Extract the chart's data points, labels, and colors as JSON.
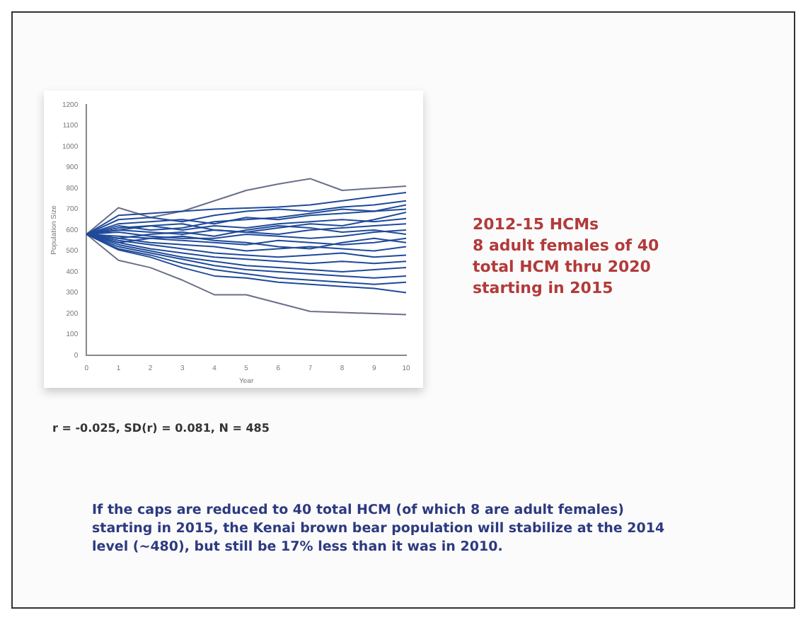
{
  "chart_data": {
    "type": "line",
    "xlabel": "Year",
    "ylabel": "Population Size",
    "x": [
      0,
      1,
      2,
      3,
      4,
      5,
      6,
      7,
      8,
      9,
      10
    ],
    "xlim": [
      0,
      10
    ],
    "xticks": [
      0,
      1,
      2,
      3,
      4,
      5,
      6,
      7,
      8,
      9,
      10
    ],
    "ylim": [
      0,
      1200
    ],
    "yticks": [
      0,
      100,
      200,
      300,
      400,
      500,
      600,
      700,
      800,
      900,
      1000,
      1100,
      1200
    ],
    "grid": false,
    "legend": false,
    "marker": "none",
    "line_style": "solid",
    "series": [
      {
        "color": "#1f4a9a",
        "values": [
          580,
          670,
          680,
          690,
          700,
          705,
          710,
          720,
          740,
          760,
          780
        ]
      },
      {
        "color": "#1f4a9a",
        "values": [
          580,
          650,
          660,
          640,
          670,
          690,
          700,
          690,
          710,
          720,
          740
        ]
      },
      {
        "color": "#1f4a9a",
        "values": [
          580,
          630,
          640,
          650,
          630,
          660,
          650,
          670,
          680,
          690,
          700
        ]
      },
      {
        "color": "#1f4a9a",
        "values": [
          580,
          610,
          620,
          600,
          620,
          610,
          630,
          640,
          650,
          640,
          655
        ]
      },
      {
        "color": "#1f4a9a",
        "values": [
          580,
          600,
          590,
          580,
          600,
          590,
          580,
          600,
          610,
          620,
          630
        ]
      },
      {
        "color": "#1f4a9a",
        "values": [
          580,
          590,
          570,
          560,
          560,
          580,
          570,
          560,
          570,
          590,
          600
        ]
      },
      {
        "color": "#1f4a9a",
        "values": [
          580,
          570,
          560,
          550,
          540,
          530,
          550,
          540,
          530,
          540,
          560
        ]
      },
      {
        "color": "#1f4a9a",
        "values": [
          580,
          560,
          540,
          530,
          520,
          500,
          510,
          520,
          510,
          500,
          520
        ]
      },
      {
        "color": "#1f4a9a",
        "values": [
          580,
          550,
          530,
          510,
          490,
          480,
          470,
          480,
          490,
          470,
          480
        ]
      },
      {
        "color": "#1f4a9a",
        "values": [
          580,
          540,
          510,
          490,
          470,
          460,
          450,
          440,
          450,
          440,
          450
        ]
      },
      {
        "color": "#1f4a9a",
        "values": [
          580,
          530,
          500,
          470,
          450,
          430,
          420,
          410,
          400,
          410,
          420
        ]
      },
      {
        "color": "#1f4a9a",
        "values": [
          580,
          520,
          490,
          460,
          430,
          410,
          400,
          390,
          380,
          370,
          380
        ]
      },
      {
        "color": "#1f4a9a",
        "values": [
          580,
          510,
          480,
          440,
          410,
          390,
          370,
          360,
          350,
          340,
          350
        ]
      },
      {
        "color": "#1f4a9a",
        "values": [
          580,
          505,
          470,
          420,
          380,
          370,
          350,
          340,
          330,
          320,
          300
        ]
      },
      {
        "color": "#1f4a9a",
        "values": [
          580,
          620,
          600,
          610,
          640,
          650,
          660,
          680,
          700,
          690,
          720
        ]
      },
      {
        "color": "#1f4a9a",
        "values": [
          580,
          560,
          580,
          590,
          570,
          600,
          620,
          610,
          590,
          600,
          580
        ]
      },
      {
        "color": "#1f4a9a",
        "values": [
          580,
          540,
          560,
          570,
          550,
          540,
          520,
          510,
          540,
          560,
          540
        ]
      },
      {
        "color": "#1f4a9a",
        "values": [
          580,
          600,
          620,
          630,
          600,
          590,
          610,
          630,
          620,
          650,
          685
        ]
      },
      {
        "color": "#6a6f8a",
        "values": [
          580,
          707,
          660,
          690,
          740,
          790,
          820,
          846,
          790,
          800,
          810
        ]
      },
      {
        "color": "#6a6f8a",
        "values": [
          580,
          455,
          420,
          360,
          290,
          290,
          250,
          210,
          205,
          200,
          195
        ]
      }
    ],
    "annotations": [
      "2012-15 HCMs\n8 adult females of 40\ntotal HCM thru 2020\nstarting in 2015",
      "r = -0.025, SD(r) = 0.081, N = 485",
      "If the caps are reduced to 40 total HCM (of which 8 are adult females) starting in 2015, the Kenai brown bear population will stabilize at the 2014 level (~480), but still be 17% less than it was in 2010."
    ]
  }
}
